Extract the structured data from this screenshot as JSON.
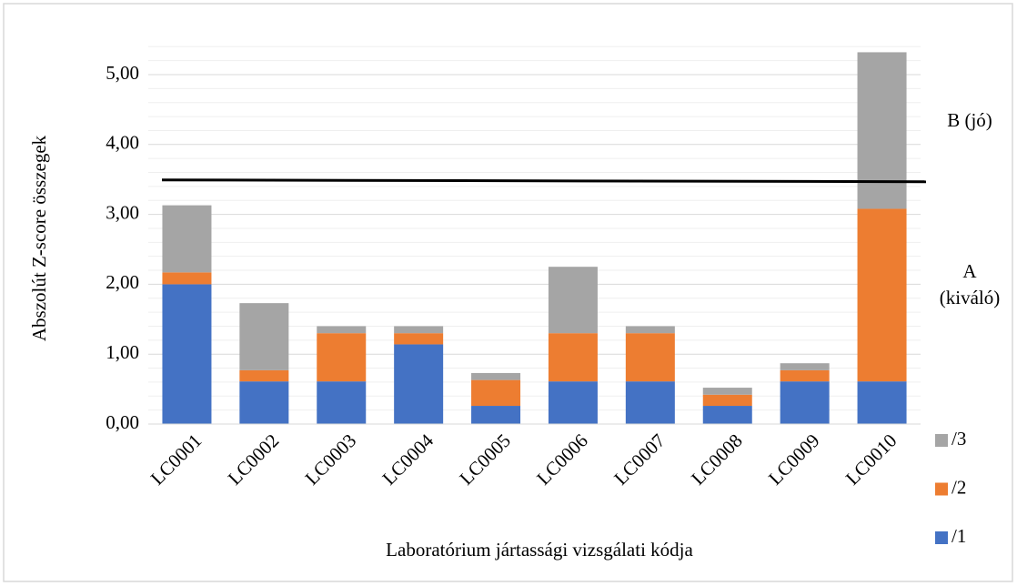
{
  "chart_data": {
    "type": "stacked_bar",
    "y_label": "Abszolút Z-score összegek",
    "x_label": "Laboratórium jártassági vizsgálati kódja",
    "categories": [
      "LC0001",
      "LC0002",
      "LC0003",
      "LC0004",
      "LC0005",
      "LC0006",
      "LC0007",
      "LC0008",
      "LC0009",
      "LC0010"
    ],
    "series": [
      {
        "name": "/1",
        "color": "#4472c4",
        "values": [
          2.0,
          0.61,
          0.61,
          1.14,
          0.26,
          0.61,
          0.61,
          0.26,
          0.61,
          0.61
        ]
      },
      {
        "name": "/2",
        "color": "#ed7d31",
        "values": [
          0.17,
          0.16,
          0.69,
          0.16,
          0.37,
          0.69,
          0.69,
          0.16,
          0.16,
          2.47
        ]
      },
      {
        "name": "/3",
        "color": "#a5a5a5",
        "values": [
          0.96,
          0.96,
          0.1,
          0.1,
          0.1,
          0.95,
          0.1,
          0.1,
          0.1,
          2.24
        ]
      }
    ],
    "ylim": [
      0,
      5.4
    ],
    "yticks": [
      {
        "value": 0,
        "label": "0,00"
      },
      {
        "value": 1,
        "label": "1,00"
      },
      {
        "value": 2,
        "label": "2,00"
      },
      {
        "value": 3,
        "label": "3,00"
      },
      {
        "value": 4,
        "label": "4,00"
      },
      {
        "value": 5,
        "label": "5,00"
      }
    ],
    "yminorticks": [
      0.2,
      0.4,
      0.6,
      0.8,
      1.2,
      1.4,
      1.6,
      1.8,
      2.2,
      2.4,
      2.6,
      2.8,
      3.2,
      3.4,
      3.6,
      3.8,
      4.2,
      4.4,
      4.6,
      4.8,
      5.2,
      5.4
    ],
    "threshold": 3.48,
    "region_labels": [
      [
        "B (jó)"
      ],
      [
        "A",
        "(kiváló)"
      ]
    ],
    "grid": true,
    "legend": "right"
  }
}
